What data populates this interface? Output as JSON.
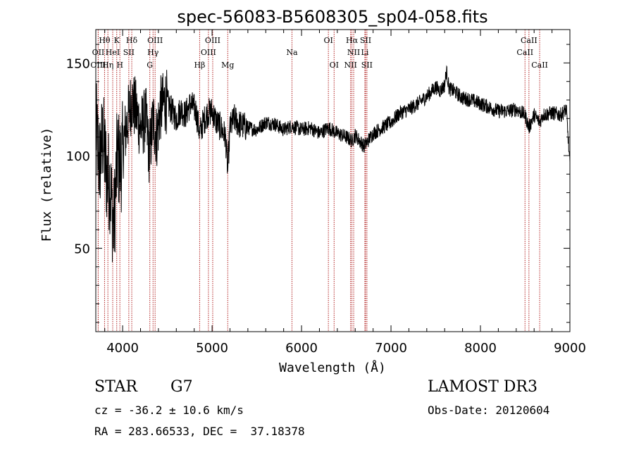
{
  "chart_data": {
    "type": "line",
    "title": "spec-56083-B5608305_sp04-058.fits",
    "xlabel": "Wavelength (Å)",
    "ylabel": "Flux (relative)",
    "xlim": [
      3700,
      9000
    ],
    "ylim": [
      5,
      168
    ],
    "xticks": [
      4000,
      5000,
      6000,
      7000,
      8000,
      9000
    ],
    "yticks": [
      50,
      100,
      150
    ],
    "series": [
      {
        "name": "flux",
        "x": [
          3700,
          3740,
          3780,
          3820,
          3860,
          3900,
          3940,
          3980,
          4020,
          4060,
          4100,
          4140,
          4200,
          4260,
          4300,
          4340,
          4380,
          4420,
          4480,
          4540,
          4600,
          4650,
          4700,
          4760,
          4820,
          4861,
          4900,
          4950,
          5000,
          5050,
          5100,
          5150,
          5175,
          5200,
          5250,
          5300,
          5400,
          5500,
          5600,
          5700,
          5800,
          5890,
          6000,
          6100,
          6200,
          6300,
          6400,
          6500,
          6563,
          6600,
          6700,
          6800,
          6900,
          7000,
          7100,
          7200,
          7300,
          7400,
          7500,
          7550,
          7600,
          7620,
          7650,
          7700,
          7800,
          7900,
          8000,
          8100,
          8200,
          8300,
          8400,
          8498,
          8542,
          8600,
          8662,
          8700,
          8800,
          8900,
          8960,
          9000
        ],
        "y": [
          115,
          95,
          110,
          90,
          85,
          60,
          100,
          95,
          110,
          120,
          130,
          125,
          115,
          120,
          100,
          120,
          110,
          125,
          130,
          125,
          120,
          125,
          122,
          128,
          124,
          112,
          118,
          123,
          124,
          118,
          115,
          110,
          92,
          115,
          120,
          117,
          115,
          114,
          118,
          117,
          114,
          116,
          114,
          115,
          112,
          115,
          112,
          110,
          108,
          111,
          105,
          112,
          115,
          118,
          123,
          125,
          128,
          132,
          137,
          135,
          138,
          146,
          136,
          135,
          131,
          130,
          128,
          126,
          124,
          124,
          125,
          122,
          115,
          122,
          118,
          122,
          123,
          122,
          125,
          95
        ]
      }
    ],
    "spectral_lines": [
      {
        "label": "Hθ",
        "wave": 3798,
        "row": 1
      },
      {
        "label": "OII",
        "wave": 3727,
        "row": 2
      },
      {
        "label": "OIII",
        "wave": 3727,
        "row": 3
      },
      {
        "label": "HeI",
        "wave": 3889,
        "row": 2
      },
      {
        "label": "Hη",
        "wave": 3835,
        "row": 3
      },
      {
        "label": "K",
        "wave": 3934,
        "row": 1
      },
      {
        "label": "H",
        "wave": 3969,
        "row": 3
      },
      {
        "label": "SII",
        "wave": 4069,
        "row": 2
      },
      {
        "label": "Hδ",
        "wave": 4102,
        "row": 1
      },
      {
        "label": "OIII",
        "wave": 4363,
        "row": 1
      },
      {
        "label": "Hγ",
        "wave": 4340,
        "row": 2
      },
      {
        "label": "G",
        "wave": 4304,
        "row": 3
      },
      {
        "label": "Hβ",
        "wave": 4861,
        "row": 3
      },
      {
        "label": "OIII",
        "wave": 5007,
        "row": 1
      },
      {
        "label": "OIII",
        "wave": 4959,
        "row": 2
      },
      {
        "label": "Mg",
        "wave": 5175,
        "row": 3
      },
      {
        "label": "Na",
        "wave": 5893,
        "row": 2
      },
      {
        "label": "OI",
        "wave": 6300,
        "row": 1
      },
      {
        "label": "OI",
        "wave": 6364,
        "row": 3
      },
      {
        "label": "Hα",
        "wave": 6563,
        "row": 1
      },
      {
        "label": "NII",
        "wave": 6583,
        "row": 2
      },
      {
        "label": "NII",
        "wave": 6548,
        "row": 3
      },
      {
        "label": "SII",
        "wave": 6716,
        "row": 1
      },
      {
        "label": "Li",
        "wave": 6708,
        "row": 2
      },
      {
        "label": "SII",
        "wave": 6731,
        "row": 3
      },
      {
        "label": "CaII",
        "wave": 8542,
        "row": 1
      },
      {
        "label": "CaII",
        "wave": 8498,
        "row": 2
      },
      {
        "label": "CaII",
        "wave": 8662,
        "row": 3
      }
    ]
  },
  "info": {
    "object_class": "STAR",
    "subclass": "G7",
    "survey": "LAMOST DR3",
    "cz": "cz = -36.2 ± 10.6 km/s",
    "obs_date": "Obs-Date: 20120604",
    "coords": "RA = 283.66533, DEC =  37.18378"
  },
  "colors": {
    "line_marker": "#b22222",
    "spectrum": "#000000"
  }
}
